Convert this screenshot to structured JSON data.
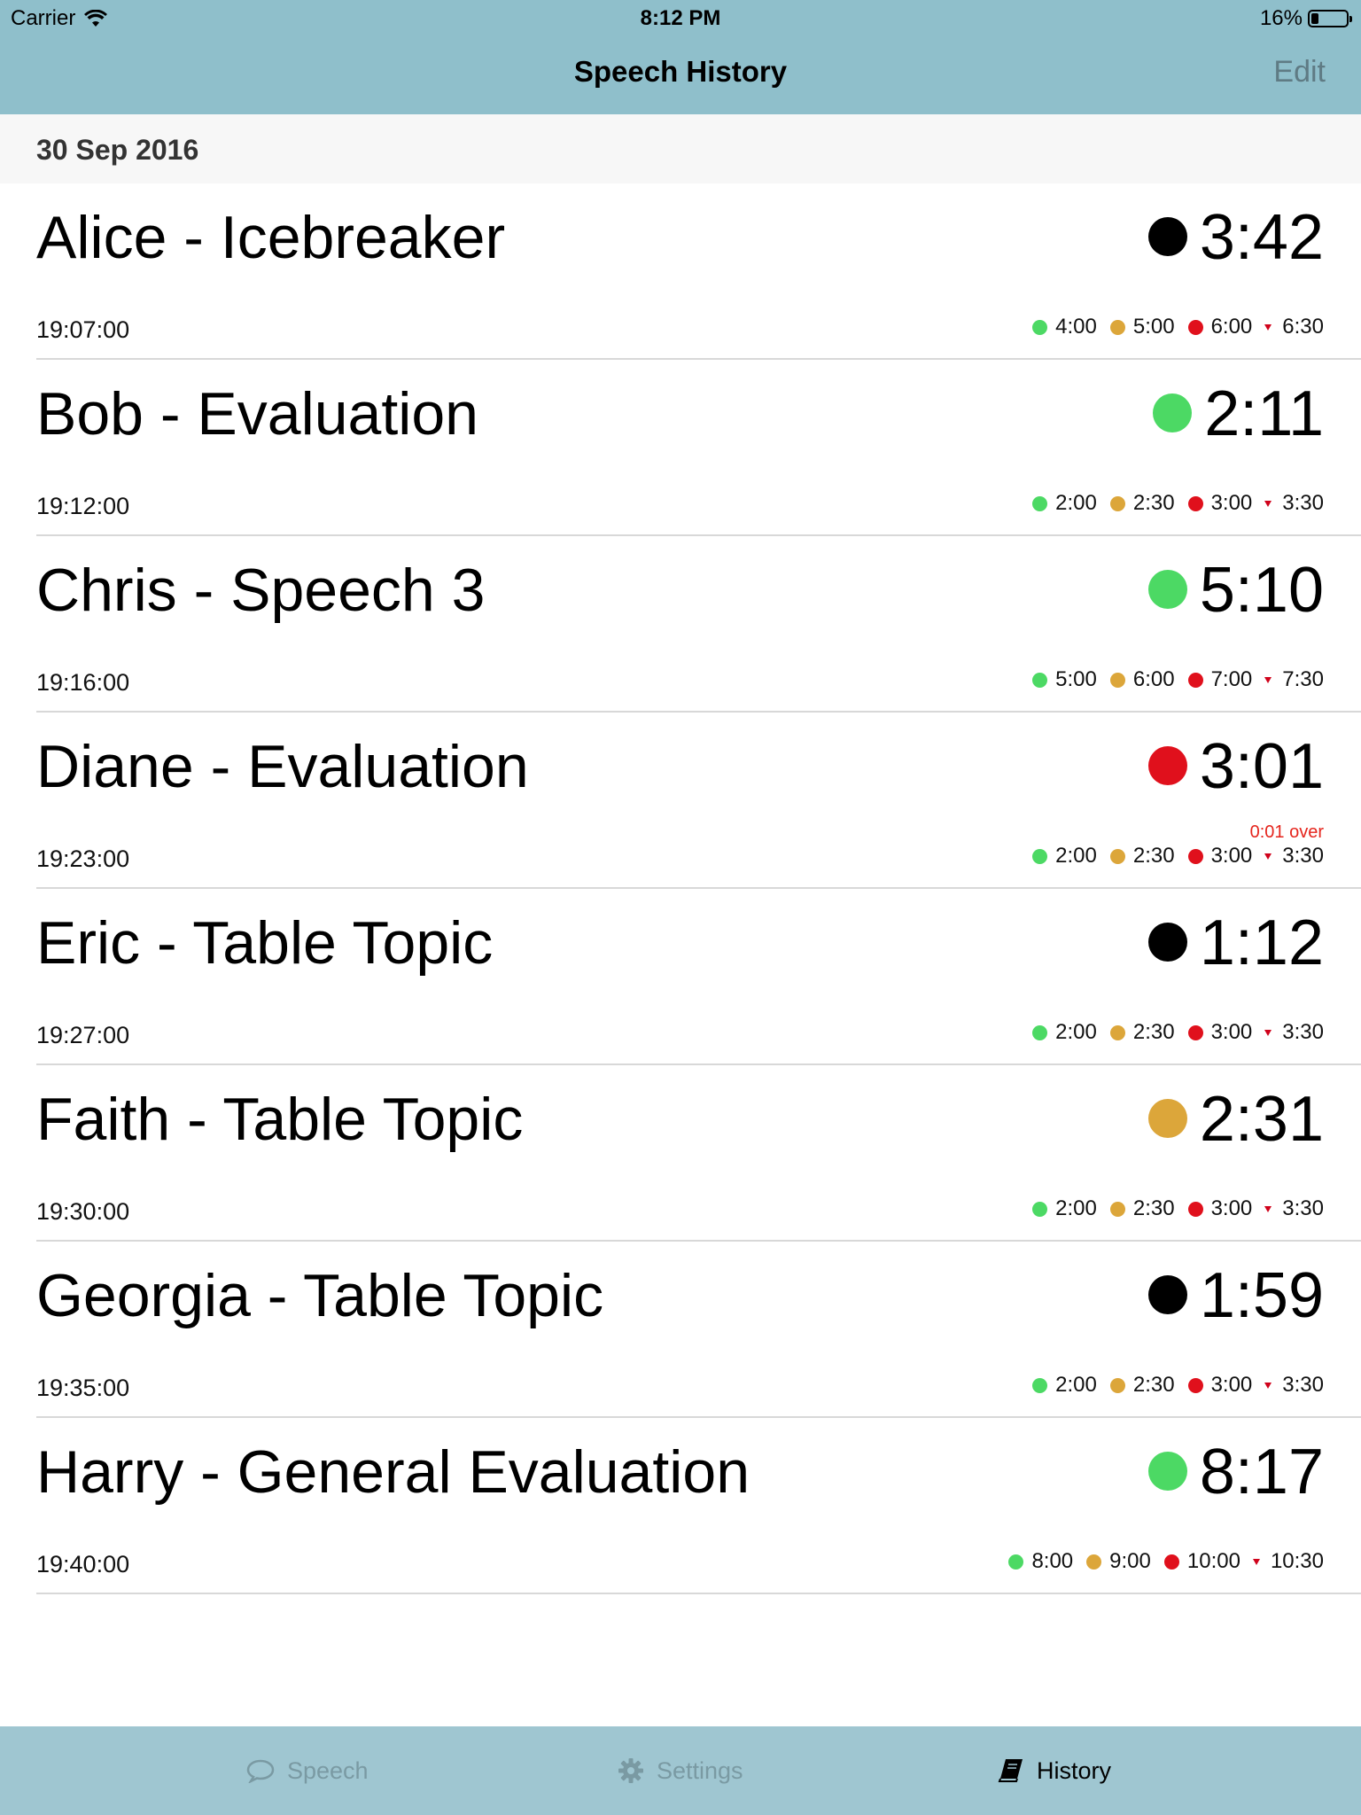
{
  "status_bar": {
    "carrier": "Carrier",
    "time": "8:12 PM",
    "battery": "16%",
    "wifi_icon": "wifi-icon",
    "battery_icon": "battery-icon"
  },
  "nav": {
    "title": "Speech History",
    "edit_label": "Edit"
  },
  "section": {
    "date": "30 Sep 2016"
  },
  "colors": {
    "green": "#4cd964",
    "amber": "#dca63a",
    "red": "#e0101c",
    "black": "#000000",
    "bar_bg": "#8fbfcb",
    "tab_bg": "#9fc6d1"
  },
  "speeches": [
    {
      "name": "Alice - Icebreaker",
      "duration": "3:42",
      "status": "black",
      "time": "19:07:00",
      "over": "",
      "targets": [
        "4:00",
        "5:00",
        "6:00",
        "6:30"
      ]
    },
    {
      "name": "Bob - Evaluation",
      "duration": "2:11",
      "status": "green",
      "time": "19:12:00",
      "over": "",
      "targets": [
        "2:00",
        "2:30",
        "3:00",
        "3:30"
      ]
    },
    {
      "name": "Chris - Speech 3",
      "duration": "5:10",
      "status": "green",
      "time": "19:16:00",
      "over": "",
      "targets": [
        "5:00",
        "6:00",
        "7:00",
        "7:30"
      ]
    },
    {
      "name": "Diane - Evaluation",
      "duration": "3:01",
      "status": "red",
      "time": "19:23:00",
      "over": "0:01 over",
      "targets": [
        "2:00",
        "2:30",
        "3:00",
        "3:30"
      ]
    },
    {
      "name": "Eric - Table Topic",
      "duration": "1:12",
      "status": "black",
      "time": "19:27:00",
      "over": "",
      "targets": [
        "2:00",
        "2:30",
        "3:00",
        "3:30"
      ]
    },
    {
      "name": "Faith - Table Topic",
      "duration": "2:31",
      "status": "amber",
      "time": "19:30:00",
      "over": "",
      "targets": [
        "2:00",
        "2:30",
        "3:00",
        "3:30"
      ]
    },
    {
      "name": "Georgia - Table Topic",
      "duration": "1:59",
      "status": "black",
      "time": "19:35:00",
      "over": "",
      "targets": [
        "2:00",
        "2:30",
        "3:00",
        "3:30"
      ]
    },
    {
      "name": "Harry - General Evaluation",
      "duration": "8:17",
      "status": "green",
      "time": "19:40:00",
      "over": "",
      "targets": [
        "8:00",
        "9:00",
        "10:00",
        "10:30"
      ]
    }
  ],
  "tabs": [
    {
      "label": "Speech",
      "icon": "speech-bubble-icon",
      "active": false
    },
    {
      "label": "Settings",
      "icon": "gear-icon",
      "active": false
    },
    {
      "label": "History",
      "icon": "book-icon",
      "active": true
    }
  ]
}
